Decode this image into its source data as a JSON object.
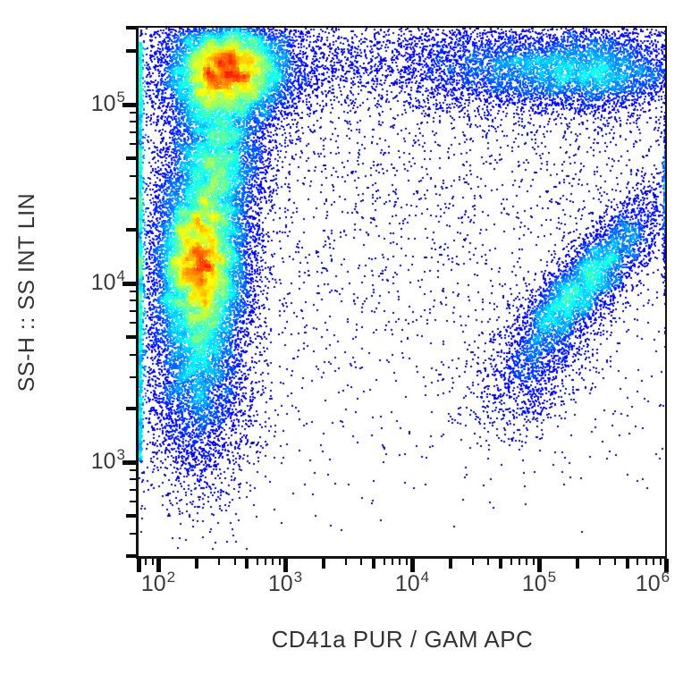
{
  "chart_data": {
    "type": "scatter",
    "subtype": "flow-cytometry-pseudocolor-density-dot-plot",
    "title": "",
    "xlabel": "CD41a PUR / GAM APC",
    "ylabel": "SS-H :: SS INT LIN",
    "x_scale": "log10",
    "y_scale": "log10",
    "x_range_log10": [
      1.845,
      6.0
    ],
    "y_range_log10": [
      2.475,
      5.43
    ],
    "x_labeled_tick_exponents": [
      2,
      3,
      4,
      5,
      6
    ],
    "y_labeled_tick_exponents": [
      3,
      4,
      5
    ],
    "tick_label_base": "10",
    "grid": false,
    "legend": false,
    "colormap": "jet (blue = low event density, red = high event density)",
    "approx_total_events": 45750,
    "populations": [
      {
        "name": "granulocytes-high-ssc",
        "shape": "gauss",
        "cx": 2.54,
        "cy": 5.2,
        "sx": 0.26,
        "sy": 0.15,
        "n": 9000
      },
      {
        "name": "monocyte-bridge",
        "shape": "gauss",
        "cx": 2.46,
        "cy": 4.72,
        "sx": 0.2,
        "sy": 0.22,
        "n": 4500
      },
      {
        "name": "lymphocytes-main",
        "shape": "gauss",
        "cx": 2.33,
        "cy": 4.13,
        "sx": 0.19,
        "sy": 0.26,
        "n": 10000
      },
      {
        "name": "lymphocytes-low-tail",
        "shape": "gauss",
        "cx": 2.31,
        "cy": 3.55,
        "sx": 0.21,
        "sy": 0.3,
        "n": 4200
      },
      {
        "name": "debris-bottom-left",
        "shape": "gauss",
        "cx": 2.28,
        "cy": 3.05,
        "sx": 0.25,
        "sy": 0.22,
        "n": 400
      },
      {
        "name": "cd41a-pos-high-ssc-band-left",
        "shape": "gauss",
        "cx": 4.72,
        "cy": 5.21,
        "sx": 0.45,
        "sy": 0.13,
        "n": 2200
      },
      {
        "name": "cd41a-pos-high-ssc-band-right",
        "shape": "gauss",
        "cx": 5.45,
        "cy": 5.19,
        "sx": 0.33,
        "sy": 0.12,
        "n": 2600
      },
      {
        "name": "cd41a-pos-platelet-diagonal",
        "shape": "gauss-rot",
        "cx": 5.33,
        "cy": 3.98,
        "s_major": 0.4,
        "s_minor": 0.11,
        "slope": 0.78,
        "n": 4600
      },
      {
        "name": "platelet-diagonal-low-trail",
        "shape": "gauss-rot",
        "cx": 4.98,
        "cy": 3.45,
        "s_major": 0.22,
        "s_minor": 0.13,
        "slope": 0.7,
        "n": 600
      },
      {
        "name": "top-scatter-band",
        "shape": "uniformx-gaussy",
        "x0": 2.9,
        "x1": 6.0,
        "cy": 5.22,
        "sy": 0.12,
        "n": 1700
      },
      {
        "name": "background-scatter",
        "shape": "uniform",
        "x0": 1.845,
        "x1": 6.0,
        "y0": 2.475,
        "y1": 5.43,
        "y_bias": 0.45,
        "n": 3400
      },
      {
        "name": "left-edge-pileup",
        "shape": "edge-left",
        "y0": 3.0,
        "y1": 5.35,
        "jitter": 0.012,
        "n": 1900
      },
      {
        "name": "right-edge-pileup",
        "shape": "edge-right",
        "cy": 4.5,
        "sy": 0.28,
        "jitter": 0.01,
        "n": 400
      }
    ]
  }
}
